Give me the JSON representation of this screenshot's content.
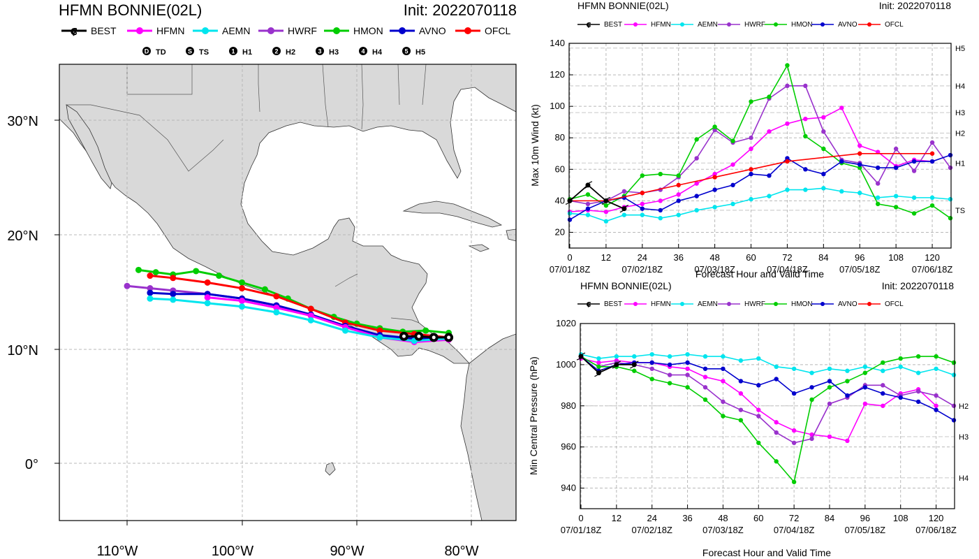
{
  "colors": {
    "BEST": "#000000",
    "HFMN": "#ff00ff",
    "AEMN": "#00e5ee",
    "HWRF": "#9932cc",
    "HMON": "#00cd00",
    "AVNO": "#0000cd",
    "OFCL": "#ff0000"
  },
  "map": {
    "title": "HFMN BONNIE(02L)",
    "init": "Init: 2022070118",
    "legend": [
      "BEST",
      "HFMN",
      "AEMN",
      "HWRF",
      "HMON",
      "AVNO",
      "OFCL"
    ],
    "intensity_legend": [
      {
        "symbol": "D",
        "label": "TD"
      },
      {
        "symbol": "S",
        "label": "TS"
      },
      {
        "symbol": "1",
        "label": "H1"
      },
      {
        "symbol": "2",
        "label": "H2"
      },
      {
        "symbol": "3",
        "label": "H3"
      },
      {
        "symbol": "4",
        "label": "H4"
      },
      {
        "symbol": "5",
        "label": "H5"
      }
    ],
    "lat_labels": [
      "30°N",
      "20°N",
      "10°N",
      "0°"
    ],
    "lon_labels": [
      "110°W",
      "100°W",
      "90°W",
      "80°W"
    ]
  },
  "chart_data": [
    {
      "type": "line",
      "title": "HFMN BONNIE(02L)",
      "subtitle": "Init: 2022070118",
      "xlabel": "Forecast Hour and Valid Time",
      "ylabel": "Max 10m Wind (kt)",
      "xlim": [
        0,
        126
      ],
      "ylim": [
        10,
        140
      ],
      "xticks": [
        "0",
        "12",
        "24",
        "36",
        "48",
        "60",
        "72",
        "84",
        "96",
        "108",
        "120"
      ],
      "xdates": [
        "07/01/18Z",
        "07/02/18Z",
        "07/03/18Z",
        "07/04/18Z",
        "07/05/18Z",
        "07/06/18Z"
      ],
      "yticks": [
        "20",
        "40",
        "60",
        "80",
        "100",
        "120",
        "140"
      ],
      "category_lines": [
        {
          "label": "TS",
          "value": 34
        },
        {
          "label": "H1",
          "value": 64
        },
        {
          "label": "H2",
          "value": 83
        },
        {
          "label": "H3",
          "value": 96
        },
        {
          "label": "H4",
          "value": 113
        },
        {
          "label": "H5",
          "value": 137
        }
      ],
      "series": [
        {
          "name": "BEST",
          "x": [
            0,
            6,
            12,
            18
          ],
          "y": [
            40,
            50,
            40,
            35
          ]
        },
        {
          "name": "HFMN",
          "x": [
            0,
            6,
            12,
            18,
            24,
            30,
            36,
            42,
            48,
            54,
            60,
            66,
            72,
            78,
            84,
            90,
            96,
            102,
            108,
            114,
            120
          ],
          "y": [
            33,
            34,
            33,
            36,
            38,
            40,
            44,
            51,
            57,
            63,
            73,
            84,
            89,
            92,
            93,
            99,
            75,
            71,
            62,
            66,
            65
          ]
        },
        {
          "name": "AEMN",
          "x": [
            0,
            6,
            12,
            18,
            24,
            30,
            36,
            42,
            48,
            54,
            60,
            66,
            72,
            78,
            84,
            90,
            96,
            102,
            108,
            114,
            120,
            126
          ],
          "y": [
            32,
            31,
            27,
            31,
            31,
            29,
            31,
            34,
            36,
            38,
            41,
            43,
            47,
            47,
            48,
            46,
            45,
            42,
            43,
            42,
            42,
            41
          ]
        },
        {
          "name": "HWRF",
          "x": [
            0,
            6,
            12,
            18,
            24,
            30,
            36,
            42,
            48,
            54,
            60,
            66,
            72,
            78,
            84,
            90,
            96,
            102,
            108,
            114,
            120,
            126
          ],
          "y": [
            40,
            38,
            40,
            46,
            45,
            47,
            55,
            67,
            85,
            77,
            80,
            105,
            113,
            113,
            84,
            66,
            64,
            51,
            73,
            59,
            77,
            61
          ]
        },
        {
          "name": "HMON",
          "x": [
            0,
            6,
            12,
            18,
            24,
            30,
            36,
            42,
            48,
            54,
            60,
            66,
            72,
            78,
            84,
            90,
            96,
            102,
            108,
            114,
            120,
            126
          ],
          "y": [
            41,
            44,
            37,
            43,
            56,
            57,
            56,
            79,
            87,
            78,
            103,
            106,
            126,
            81,
            73,
            64,
            61,
            38,
            36,
            32,
            37,
            29
          ]
        },
        {
          "name": "AVNO",
          "x": [
            0,
            6,
            12,
            18,
            24,
            30,
            36,
            42,
            48,
            54,
            60,
            66,
            72,
            78,
            84,
            90,
            96,
            102,
            108,
            114,
            120,
            126
          ],
          "y": [
            28,
            35,
            40,
            42,
            35,
            34,
            40,
            43,
            47,
            50,
            57,
            56,
            67,
            60,
            57,
            65,
            63,
            61,
            61,
            65,
            65,
            69
          ]
        },
        {
          "name": "OFCL",
          "x": [
            0,
            12,
            24,
            36,
            48,
            60,
            72,
            96,
            120
          ],
          "y": [
            40,
            40,
            45,
            50,
            55,
            60,
            65,
            70,
            70
          ]
        }
      ]
    },
    {
      "type": "line",
      "title": "HFMN BONNIE(02L)",
      "subtitle": "Init: 2022070118",
      "xlabel": "Forecast Hour and Valid Time",
      "ylabel": "Min Central Pressure (hPa)",
      "xlim": [
        0,
        126
      ],
      "ylim": [
        930,
        1020
      ],
      "xticks": [
        "0",
        "12",
        "24",
        "36",
        "48",
        "60",
        "72",
        "84",
        "96",
        "108",
        "120"
      ],
      "xdates": [
        "07/01/18Z",
        "07/02/18Z",
        "07/03/18Z",
        "07/04/18Z",
        "07/05/18Z",
        "07/06/18Z"
      ],
      "yticks": [
        "940",
        "960",
        "980",
        "1000",
        "1020"
      ],
      "category_lines": [
        {
          "label": "H2",
          "value": 980
        },
        {
          "label": "H3",
          "value": 965
        },
        {
          "label": "H4",
          "value": 945
        }
      ],
      "series": [
        {
          "name": "BEST",
          "x": [
            0,
            6,
            12,
            18
          ],
          "y": [
            1004,
            996,
            1000,
            1000
          ]
        },
        {
          "name": "HFMN",
          "x": [
            0,
            6,
            12,
            18,
            24,
            30,
            36,
            42,
            48,
            54,
            60,
            66,
            72,
            78,
            84,
            90,
            96,
            102,
            108,
            114,
            120
          ],
          "y": [
            1003,
            1001,
            1002,
            1001,
            1001,
            999,
            998,
            994,
            992,
            986,
            978,
            972,
            968,
            966,
            965,
            963,
            981,
            980,
            986,
            988,
            980
          ]
        },
        {
          "name": "AEMN",
          "x": [
            0,
            6,
            12,
            18,
            24,
            30,
            36,
            42,
            48,
            54,
            60,
            66,
            72,
            78,
            84,
            90,
            96,
            102,
            108,
            114,
            120,
            126
          ],
          "y": [
            1005,
            1003,
            1004,
            1004,
            1005,
            1004,
            1005,
            1004,
            1004,
            1002,
            1003,
            999,
            998,
            996,
            998,
            997,
            999,
            997,
            999,
            996,
            998,
            995
          ]
        },
        {
          "name": "HWRF",
          "x": [
            0,
            6,
            12,
            18,
            24,
            30,
            36,
            42,
            48,
            54,
            60,
            66,
            72,
            78,
            84,
            90,
            96,
            102,
            108,
            114,
            120,
            126
          ],
          "y": [
            1004,
            999,
            1001,
            1000,
            998,
            995,
            995,
            989,
            982,
            978,
            975,
            967,
            962,
            964,
            981,
            984,
            990,
            990,
            985,
            987,
            985,
            980
          ]
        },
        {
          "name": "HMON",
          "x": [
            0,
            6,
            12,
            18,
            24,
            30,
            36,
            42,
            48,
            54,
            60,
            66,
            72,
            78,
            84,
            90,
            96,
            102,
            108,
            114,
            120,
            126
          ],
          "y": [
            1004,
            999,
            999,
            997,
            993,
            991,
            989,
            983,
            975,
            973,
            962,
            953,
            943,
            983,
            989,
            992,
            996,
            1001,
            1003,
            1004,
            1004,
            1001
          ]
        },
        {
          "name": "AVNO",
          "x": [
            0,
            6,
            12,
            18,
            24,
            30,
            36,
            42,
            48,
            54,
            60,
            66,
            72,
            78,
            84,
            90,
            96,
            102,
            108,
            114,
            120,
            126
          ],
          "y": [
            1004,
            997,
            1000,
            1001,
            1001,
            1000,
            1001,
            998,
            998,
            992,
            990,
            993,
            986,
            989,
            992,
            985,
            989,
            986,
            984,
            982,
            978,
            973
          ]
        },
        {
          "name": "OFCL",
          "x": [
            0
          ],
          "y": [
            1004
          ]
        }
      ]
    }
  ]
}
